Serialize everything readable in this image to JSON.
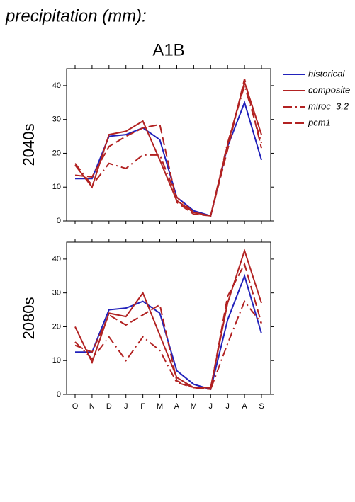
{
  "title": "precipitation (mm):",
  "subtitle": "A1B",
  "chart_data": [
    {
      "type": "line",
      "ylabel": "2040s",
      "ylim": [
        0,
        45
      ],
      "yticks": [
        0,
        10,
        20,
        30,
        40
      ],
      "legend": "right",
      "series": [
        {
          "name": "historical",
          "color": "#2222bb",
          "dash": "solid",
          "values": [
            12.5,
            12.5,
            25,
            25.5,
            27.5,
            24,
            7,
            3,
            1.5,
            22,
            35,
            18
          ]
        },
        {
          "name": "composite",
          "color": "#b22222",
          "dash": "solid",
          "values": [
            16.5,
            10,
            25.5,
            26.5,
            29.5,
            18,
            6,
            2.5,
            1.5,
            22.5,
            41,
            25.5
          ]
        },
        {
          "name": "miroc_3.2",
          "color": "#b22222",
          "dash": "dashdot",
          "values": [
            17,
            10.5,
            17,
            15.5,
            19.5,
            19.5,
            7,
            2.5,
            1.5,
            23,
            40,
            23
          ]
        },
        {
          "name": "pcm1",
          "color": "#b22222",
          "dash": "dashed",
          "values": [
            13.5,
            13,
            22,
            25,
            27.5,
            28.5,
            5.5,
            2,
            1.5,
            21,
            42,
            21.5
          ]
        }
      ]
    },
    {
      "type": "line",
      "ylabel": "2080s",
      "ylim": [
        0,
        45
      ],
      "yticks": [
        0,
        10,
        20,
        30,
        40
      ],
      "categories": [
        "O",
        "N",
        "D",
        "J",
        "F",
        "M",
        "A",
        "M",
        "J",
        "J",
        "A",
        "S"
      ],
      "series": [
        {
          "color": "#2222bb",
          "dash": "solid",
          "values": [
            12.5,
            12.5,
            25,
            25.5,
            27.5,
            24,
            7,
            3,
            1.5,
            22,
            35,
            18
          ]
        },
        {
          "color": "#b22222",
          "dash": "solid",
          "values": [
            20,
            9.5,
            24,
            23,
            30,
            17.5,
            5,
            2,
            2,
            27,
            42.5,
            27
          ]
        },
        {
          "color": "#b22222",
          "dash": "dashdot",
          "values": [
            15.5,
            10.5,
            17,
            10,
            17,
            13,
            3.5,
            2,
            1.5,
            15,
            27.5,
            21
          ]
        },
        {
          "color": "#b22222",
          "dash": "dashed",
          "values": [
            14.5,
            12.5,
            23.5,
            20.5,
            23.5,
            26.5,
            4,
            2,
            1.5,
            29,
            38.5,
            21
          ]
        }
      ]
    }
  ]
}
